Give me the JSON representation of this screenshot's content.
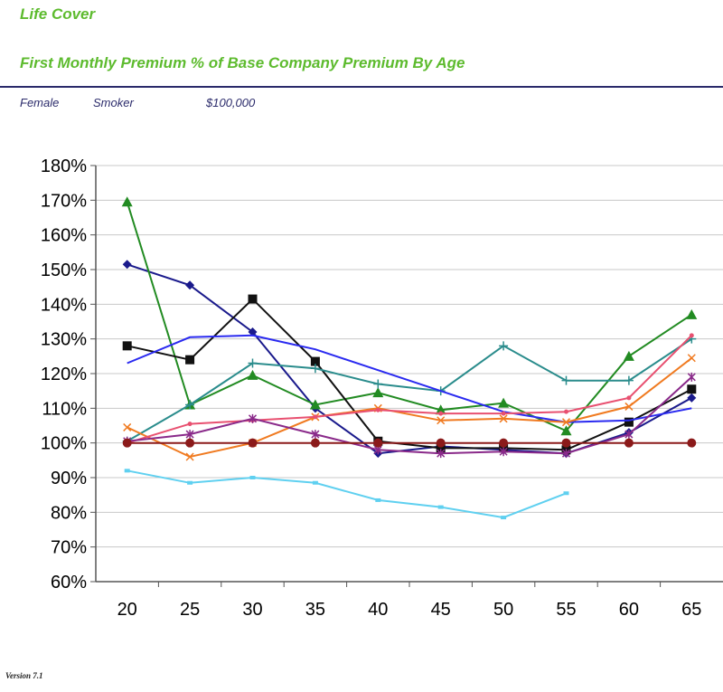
{
  "header": {
    "title": "Life Cover",
    "subtitle": "First Monthly Premium % of Base Company Premium By Age"
  },
  "meta": {
    "gender": "Female",
    "smoker": "Smoker",
    "amount": "$100,000"
  },
  "footer": {
    "version": "Version 7.1"
  },
  "chart_data": {
    "type": "line",
    "categories": [
      "20",
      "25",
      "30",
      "35",
      "40",
      "45",
      "50",
      "55",
      "60",
      "65"
    ],
    "ylim": [
      60,
      180
    ],
    "yticks": [
      "60%",
      "70%",
      "80%",
      "90%",
      "100%",
      "110%",
      "120%",
      "130%",
      "140%",
      "150%",
      "160%",
      "170%",
      "180%"
    ],
    "grid": true,
    "legend": "none",
    "series": [
      {
        "color": "#1a1a8c",
        "marker": "diamond",
        "values": [
          151.5,
          145.5,
          132,
          110,
          97,
          99,
          98,
          97,
          103,
          113
        ]
      },
      {
        "color": "#228b22",
        "marker": "triangle",
        "values": [
          169.5,
          111,
          119.5,
          111,
          114.5,
          109.5,
          111.5,
          103.5,
          125,
          137
        ]
      },
      {
        "color": "#111111",
        "marker": "square",
        "values": [
          128,
          124,
          141.5,
          123.5,
          100.5,
          98.5,
          98.5,
          98,
          106,
          115.5
        ]
      },
      {
        "color": "#2a8c8c",
        "marker": "plus",
        "values": [
          100.5,
          111,
          123,
          121.5,
          117,
          115,
          128,
          118,
          118,
          130
        ]
      },
      {
        "color": "#2a2af0",
        "marker": "none",
        "values": [
          123,
          130.5,
          131,
          127,
          121,
          115,
          109,
          106,
          106.5,
          110
        ]
      },
      {
        "color": "#f07a20",
        "marker": "x",
        "values": [
          104.5,
          96,
          100,
          107.5,
          110,
          106.5,
          107,
          106,
          110.5,
          124.5
        ]
      },
      {
        "color": "#e85070",
        "marker": "dot",
        "values": [
          100,
          105.5,
          106.5,
          107.5,
          109.5,
          108.5,
          108.5,
          109,
          113,
          131
        ]
      },
      {
        "color": "#8a2a8a",
        "marker": "star",
        "values": [
          100.5,
          102.5,
          107,
          102.5,
          98,
          97,
          97.5,
          97,
          102.5,
          119
        ]
      },
      {
        "color": "#8b1a1a",
        "marker": "circle",
        "values": [
          100,
          100,
          100,
          100,
          100,
          100,
          100,
          100,
          100,
          100
        ]
      },
      {
        "color": "#5fd0f0",
        "marker": "smallsquare",
        "values": [
          92,
          88.5,
          90,
          88.5,
          83.5,
          81.5,
          78.5,
          85.5,
          null,
          null
        ]
      }
    ]
  }
}
